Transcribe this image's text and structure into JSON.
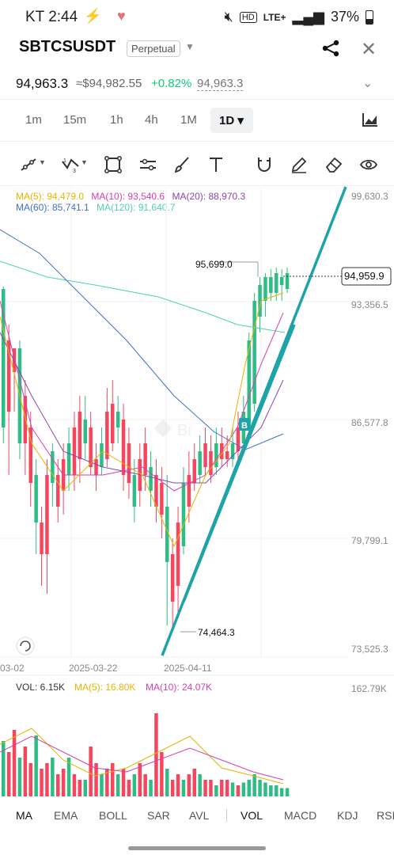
{
  "status_bar": {
    "time": "KT 2:44",
    "battery": "37%",
    "network": "LTE+"
  },
  "header": {
    "symbol": "SBTCSUSDT",
    "contract_type": "Perpetual"
  },
  "price_row": {
    "last": "94,963.3",
    "usd": "≈$94,982.55",
    "change": "+0.82%",
    "mark": "94,963.3"
  },
  "timeframes": [
    "1m",
    "15m",
    "1h",
    "4h",
    "1M",
    "1D ▾"
  ],
  "tools": [
    "trend-line-icon",
    "fib-icon",
    "rectangle-icon",
    "settings-sliders-icon",
    "brush-icon",
    "text-icon",
    "magnet-icon",
    "pencil-icon",
    "eraser-icon",
    "eye-icon"
  ],
  "ma_legend": {
    "ma5": "MA(5): 94,479.0",
    "ma10": "MA(10): 93,540.6",
    "ma20": "MA(20): 88,970.3",
    "ma60": "MA(60): 85,741.1",
    "ma120": "MA(120): 91,640.7"
  },
  "price_axis": [
    "99,630.3",
    "93,356.5",
    "86,577.8",
    "79,799.1",
    "73,525.3"
  ],
  "current_price_tag": "94,959.9",
  "annotations": {
    "high": "95,699.0",
    "low": "74,464.3",
    "marker": "B"
  },
  "date_axis": [
    "03-02",
    "2025-03-22",
    "2025-04-11"
  ],
  "volume_legend": {
    "vol": "VOL: 6.15K",
    "ma5": "MA(5): 16.80K",
    "ma10": "MA(10): 24.07K",
    "axis_max": "162.79K"
  },
  "indicator_tabs": [
    "MA",
    "EMA",
    "BOLL",
    "SAR",
    "AVL",
    "VOL",
    "MACD",
    "KDJ",
    "RSI"
  ],
  "colors": {
    "up": "#2ebd85",
    "down": "#f6465d",
    "trend": "#1ea3a8",
    "ma5": "#e8b400",
    "ma10": "#d63faf",
    "ma20": "#8e44ad",
    "ma60": "#3f6fd1",
    "ma120": "#4fd2b7"
  },
  "chart_data": {
    "type": "candlestick",
    "series": [
      {
        "name": "MA(5)",
        "last": 94479.0
      },
      {
        "name": "MA(10)",
        "last": 93540.6
      },
      {
        "name": "MA(20)",
        "last": 88970.3
      },
      {
        "name": "MA(60)",
        "last": 85741.1
      },
      {
        "name": "MA(120)",
        "last": 91640.7
      }
    ],
    "ylim": [
      73525.3,
      99630.3
    ],
    "high": 95699.0,
    "low": 74464.3,
    "last": 94959.9
  }
}
